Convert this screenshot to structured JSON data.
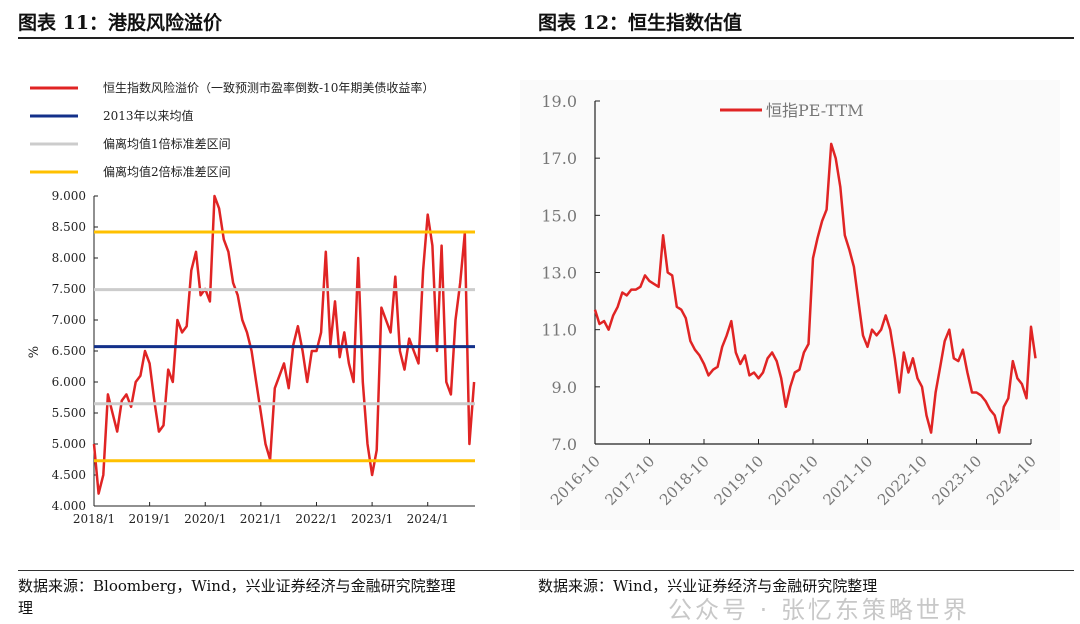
{
  "titles": {
    "left": "图表 11：港股风险溢价",
    "right": "图表 12：恒生指数估值"
  },
  "sources": {
    "left_line1": "数据来源：Bloomberg，Wind，兴业证券经济与金融研究院整理",
    "left_line2": "理",
    "right": "数据来源：Wind，兴业证券经济与金融研究院整理"
  },
  "watermark": "公众号 · 张忆东策略世界",
  "chart_data": [
    {
      "type": "line",
      "title": "港股风险溢价",
      "ylabel": "%",
      "xlabel": "",
      "ylim": [
        4.0,
        9.0
      ],
      "yticks": [
        "4.000",
        "4.500",
        "5.000",
        "5.500",
        "6.000",
        "6.500",
        "7.000",
        "7.500",
        "8.000",
        "8.500",
        "9.000"
      ],
      "xticks": [
        "2018/1",
        "2019/1",
        "2020/1",
        "2021/1",
        "2022/1",
        "2023/1",
        "2024/1"
      ],
      "xlim": [
        2018.0,
        2024.85
      ],
      "legend_position": "top-left",
      "series": [
        {
          "name": "恒生指数风险溢价（一致预测市盈率倒数-10年期美债收益率）",
          "color": "#e02424",
          "start": 2018.0,
          "step_months": 1,
          "values": [
            5.0,
            4.2,
            4.5,
            5.8,
            5.5,
            5.2,
            5.7,
            5.8,
            5.6,
            6.0,
            6.1,
            6.5,
            6.3,
            5.7,
            5.2,
            5.3,
            6.2,
            6.0,
            7.0,
            6.8,
            6.9,
            7.8,
            8.1,
            7.4,
            7.5,
            7.3,
            9.0,
            8.8,
            8.3,
            8.1,
            7.6,
            7.4,
            7.0,
            6.8,
            6.5,
            6.0,
            5.5,
            5.0,
            4.75,
            5.9,
            6.1,
            6.3,
            5.9,
            6.6,
            6.9,
            6.5,
            6.0,
            6.5,
            6.5,
            6.8,
            8.1,
            6.6,
            7.3,
            6.4,
            6.8,
            6.3,
            6.0,
            8.0,
            6.0,
            5.0,
            4.5,
            4.9,
            7.2,
            7.0,
            6.8,
            7.7,
            6.5,
            6.2,
            6.7,
            6.5,
            6.3,
            7.8,
            8.7,
            8.2,
            6.5,
            8.2,
            6.0,
            5.8,
            7.0,
            7.6,
            8.4,
            5.0,
            6.0
          ]
        },
        {
          "name": "2013年以来均值",
          "color": "#13308a",
          "constant": 6.57
        },
        {
          "name": "偏离均值1倍标准差区间",
          "color": "#cccccc",
          "constants": [
            7.49,
            5.65
          ]
        },
        {
          "name": "偏离均值2倍标准差区间",
          "color": "#ffc000",
          "constants": [
            8.42,
            4.73
          ]
        }
      ]
    },
    {
      "type": "line",
      "title": "恒生指数估值",
      "ylim": [
        7.0,
        19.0
      ],
      "yticks": [
        "7.0",
        "9.0",
        "11.0",
        "13.0",
        "15.0",
        "17.0",
        "19.0"
      ],
      "xticks": [
        "2016-10",
        "2017-10",
        "2018-10",
        "2019-10",
        "2020-10",
        "2021-10",
        "2022-10",
        "2023-10",
        "2024-10"
      ],
      "xlim": [
        2016.75,
        2024.75
      ],
      "legend_position": "top-center",
      "series": [
        {
          "name": "恒指PE-TTM",
          "color": "#e02424",
          "start": 2016.75,
          "step_months": 1,
          "values": [
            11.7,
            11.2,
            11.3,
            11.0,
            11.5,
            11.8,
            12.3,
            12.2,
            12.4,
            12.4,
            12.5,
            12.9,
            12.7,
            12.6,
            12.5,
            14.3,
            13.0,
            12.9,
            11.8,
            11.7,
            11.4,
            10.6,
            10.3,
            10.1,
            9.8,
            9.4,
            9.6,
            9.7,
            10.4,
            10.8,
            11.3,
            10.2,
            9.8,
            10.1,
            9.4,
            9.5,
            9.3,
            9.5,
            10.0,
            10.2,
            9.9,
            9.3,
            8.3,
            9.0,
            9.5,
            9.6,
            10.2,
            10.5,
            13.5,
            14.2,
            14.8,
            15.2,
            17.5,
            17.0,
            16.0,
            14.3,
            13.8,
            13.2,
            12.0,
            10.8,
            10.4,
            11.0,
            10.8,
            11.0,
            11.5,
            11.0,
            10.0,
            8.8,
            10.2,
            9.5,
            10.0,
            9.3,
            9.0,
            8.0,
            7.4,
            8.8,
            9.7,
            10.6,
            11.0,
            10.0,
            9.9,
            10.3,
            9.5,
            8.8,
            8.8,
            8.7,
            8.5,
            8.2,
            8.0,
            7.4,
            8.3,
            8.6,
            9.9,
            9.3,
            9.1,
            8.6,
            11.1,
            10.0
          ]
        }
      ]
    }
  ]
}
